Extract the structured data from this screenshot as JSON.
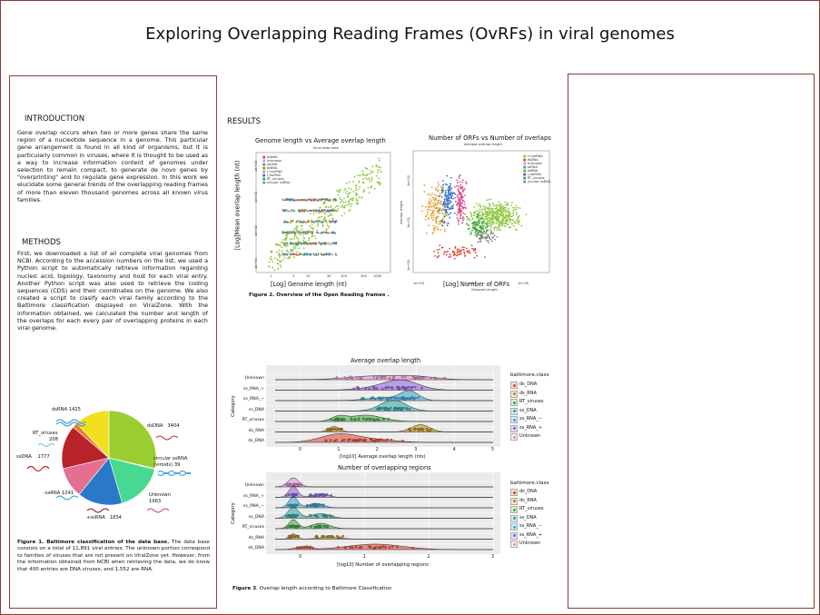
{
  "title": "Exploring Overlapping Reading Frames (OvRFs) in viral genomes",
  "intro": {
    "heading": "INTRODUCTION",
    "text": "Gene overlap occurs when two or more genes share the same region of a nucleotide sequence in a genome. This particular gene arrangement is found in all kind of organisms, but it is particularly common in viruses, where it is thought to be used as a way to increase information content of genomes under selection to remain compact, to generate de novo genes by \"overprinting\" and to regulate gene expression. In this work we elucidate some general trends of the overlapping reading frames of more than eleven thousand genomes across all known virus families."
  },
  "methods": {
    "heading": "METHODS",
    "text": "First, we downloaded a list of all complete viral genomes from NCBI. According to the accession numbers on the list, we used a Python script to automatically retrieve information regarding nucleic acid, topology, taxonomy and host for each viral entry. Another Python script was also used to retrieve the coding sequences (CDS) and their coordinates on the genome. We also created a script to clasify each viral family according to the Baltimore classification displayed on ViralZone. With the information obtained, we calculated the number and length of the overlaps for each every pair of overlapping proteins in each viral genome."
  },
  "pie": {
    "labels": [
      {
        "name": "dsRNA",
        "value": "1425"
      },
      {
        "name": "RT_viruses",
        "value": "208"
      },
      {
        "name": "ssDNA",
        "value": "1777"
      },
      {
        "name": "-ssRNA",
        "value": "1241"
      },
      {
        "name": "+ssRNA",
        "value": "1834"
      },
      {
        "name": "Unknown",
        "value": "1963"
      },
      {
        "name": "circular ssRNA (viroids)",
        "value": "39"
      },
      {
        "name": "dsDNA",
        "value": "3404"
      }
    ]
  },
  "figure1": {
    "bold": "Figure 1. Baltimore classification of the data base.",
    "text": " The data base consists on a total of 11,891 viral entries. The unknown portion correspond to families of viruses that are not present on ViralZone yet. However, from the information obtained from NCBI when retrieving the data, we do know that 400 entries are DNA viruses, and 1,552 are RNA."
  },
  "results": {
    "heading": "RESULTS"
  },
  "scatter1": {
    "title": "Genome length vs Average overlap length",
    "inner_title": "Virus data base",
    "xlabel": "[Log] Genome length (nt)",
    "ylabel": "[Log]Mean overlap length (nt)",
    "x_ticks": [
      "1",
      "3",
      "10",
      "30",
      "100",
      "300",
      "1000"
    ],
    "y_ticks": [
      "1e+01",
      "1e+02",
      "1e+03",
      "1e+04"
    ],
    "legend": [
      "dsDNA",
      "Unknown",
      "ssDNA",
      "dsRNA",
      "(+)ssRNA",
      "(-)ssRNA",
      "RT_viruses",
      "circular ssRNA"
    ]
  },
  "scatter2": {
    "title": "Number of ORFs vs Number of overlaps",
    "inner_title": "Average overlap length",
    "xlabel": "[Log] Number of ORFs",
    "inner_xlabel": "Genome Length",
    "inner_ylabel": "overlap length",
    "x_ticks": [
      "1e+03",
      "1e+04",
      "1e+05"
    ],
    "y_ticks": [
      "1e+00",
      "1e+01",
      "1e+02"
    ],
    "legend": [
      "(+)ssRNA",
      "dsDNA",
      "Unknown",
      "ssRNA",
      "dsRNA",
      "(-)ssRNA",
      "RT_viruses",
      "circular ssRNA"
    ]
  },
  "figure2": {
    "caption": "Figure 2.  Overview of the Open Reading frames ."
  },
  "ridge1": {
    "title": "Average overlap length",
    "xlabel": "[log10] Average overlap length (nts)",
    "ylabel": "Category",
    "categories": [
      "Unknown",
      "ss_RNA_+",
      "ss_RNA_−",
      "ss_DNA",
      "RT_viruses",
      "ds_RNA",
      "ds_DNA"
    ],
    "x_ticks": [
      "0",
      "1",
      "2",
      "3",
      "4",
      "5"
    ],
    "legend_title": "baltimore.class",
    "legend": [
      "ds_DNA",
      "ds_RNA",
      "RT_viruses",
      "ss_DNA",
      "ss_RNA_−",
      "ss_RNA_+",
      "Unknown"
    ]
  },
  "ridge2": {
    "title": "Number of overlapping regions",
    "xlabel": "[log10] Number of overlapping regions",
    "ylabel": "Category",
    "categories": [
      "Unknown",
      "ss_RNA_+",
      "ss_RNA_−",
      "ss_DNA",
      "RT_viruses",
      "ds_RNA",
      "ds_DNA"
    ],
    "x_ticks": [
      "0",
      "1",
      "2",
      "3"
    ],
    "legend_title": "baltimore.class",
    "legend": [
      "ds_DNA",
      "ds_RNA",
      "RT_viruses",
      "ss_DNA",
      "ss_RNA_−",
      "ss_RNA_+",
      "Unknown"
    ]
  },
  "figure3": {
    "bold": "Figure 3",
    "text": ". Overlap length according to Baltimore Classification"
  },
  "colors": {
    "ds_DNA": "#e0402e",
    "ds_RNA": "#b8860b",
    "RT_viruses": "#3aa53a",
    "ss_DNA": "#23a8a0",
    "ss_RNA_minus": "#2ea3d6",
    "ss_RNA_plus": "#8e5be0",
    "Unknown": "#e58ad3",
    "border": "#8a3b34"
  }
}
